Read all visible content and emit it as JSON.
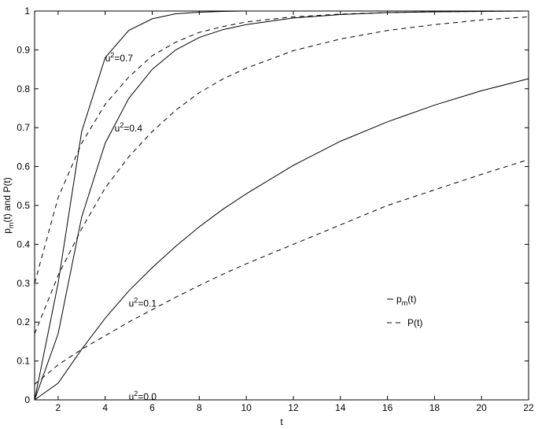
{
  "chart_data": {
    "type": "line",
    "xlabel": "t",
    "ylabel": "p_m(t) and P(t)",
    "ylabel_parts": {
      "p": "p",
      "sub": "m",
      "rest": "(t) and P(t)"
    },
    "xlim": [
      1,
      22
    ],
    "ylim": [
      0,
      1
    ],
    "xticks": [
      2,
      4,
      6,
      8,
      10,
      12,
      14,
      16,
      18,
      20,
      22
    ],
    "yticks": [
      0,
      0.1,
      0.2,
      0.3,
      0.4,
      0.5,
      0.6,
      0.7,
      0.8,
      0.9,
      1
    ],
    "ytick_labels": [
      "0",
      "0.1",
      "0.2",
      "0.3",
      "0.4",
      "0.5",
      "0.6",
      "0.7",
      "0.8",
      "0.9",
      "1"
    ],
    "grid": false,
    "legend_position": "lower-right",
    "legend": [
      {
        "style": "solid",
        "label_main": "p",
        "label_sub": "m",
        "label_rest": "(t)"
      },
      {
        "style": "dashed",
        "label_main": "P(t)",
        "label_sub": "",
        "label_rest": ""
      }
    ],
    "annotations": [
      {
        "base": "u",
        "sup": "2",
        "rest": "=0.7",
        "x": 4.0,
        "y": 0.87
      },
      {
        "base": "u",
        "sup": "2",
        "rest": "=0.4",
        "x": 4.4,
        "y": 0.69
      },
      {
        "base": "u",
        "sup": "2",
        "rest": "=0.1",
        "x": 5.0,
        "y": 0.24
      },
      {
        "base": "u",
        "sup": "2",
        "rest": "=0.0",
        "x": 5.0,
        "y": 0.0
      }
    ],
    "series": [
      {
        "u2": 0.7,
        "style": "solid",
        "x": [
          1,
          2,
          3,
          4,
          5,
          6,
          7,
          8,
          9,
          10,
          12,
          14,
          16,
          18,
          20,
          22
        ],
        "y": [
          0.0,
          0.3,
          0.69,
          0.88,
          0.95,
          0.98,
          0.993,
          0.997,
          0.999,
          1.0,
          1.0,
          1.0,
          1.0,
          1.0,
          1.0,
          1.0
        ]
      },
      {
        "u2": 0.7,
        "style": "dashed",
        "x": [
          1,
          2,
          3,
          4,
          5,
          6,
          7,
          8,
          9,
          10,
          12,
          14,
          16,
          18,
          20,
          22
        ],
        "y": [
          0.3,
          0.52,
          0.66,
          0.76,
          0.83,
          0.885,
          0.92,
          0.945,
          0.96,
          0.972,
          0.985,
          0.992,
          0.996,
          0.998,
          0.999,
          1.0
        ]
      },
      {
        "u2": 0.4,
        "style": "solid",
        "x": [
          1,
          2,
          3,
          4,
          5,
          6,
          7,
          8,
          9,
          10,
          12,
          14,
          16,
          18,
          20,
          22
        ],
        "y": [
          0.0,
          0.17,
          0.47,
          0.66,
          0.775,
          0.85,
          0.9,
          0.932,
          0.952,
          0.965,
          0.982,
          0.991,
          0.996,
          0.998,
          0.999,
          1.0
        ]
      },
      {
        "u2": 0.4,
        "style": "dashed",
        "x": [
          1,
          2,
          3,
          4,
          5,
          6,
          7,
          8,
          9,
          10,
          12,
          14,
          16,
          18,
          20,
          22
        ],
        "y": [
          0.17,
          0.32,
          0.44,
          0.545,
          0.625,
          0.69,
          0.745,
          0.79,
          0.825,
          0.853,
          0.898,
          0.928,
          0.95,
          0.965,
          0.977,
          0.985
        ]
      },
      {
        "u2": 0.1,
        "style": "solid",
        "x": [
          1,
          2,
          3,
          4,
          5,
          6,
          7,
          8,
          9,
          10,
          12,
          14,
          16,
          18,
          20,
          22
        ],
        "y": [
          0.0,
          0.043,
          0.13,
          0.21,
          0.28,
          0.34,
          0.395,
          0.445,
          0.49,
          0.53,
          0.603,
          0.665,
          0.715,
          0.758,
          0.795,
          0.826
        ]
      },
      {
        "u2": 0.1,
        "style": "dashed",
        "x": [
          1,
          2,
          3,
          4,
          5,
          6,
          7,
          8,
          9,
          10,
          12,
          14,
          16,
          18,
          20,
          22
        ],
        "y": [
          0.04,
          0.09,
          0.13,
          0.165,
          0.2,
          0.232,
          0.264,
          0.294,
          0.323,
          0.35,
          0.4,
          0.45,
          0.5,
          0.54,
          0.58,
          0.618
        ]
      },
      {
        "u2": 0.0,
        "style": "solid",
        "x": [
          1,
          22
        ],
        "y": [
          0.0,
          0.0
        ]
      }
    ]
  }
}
